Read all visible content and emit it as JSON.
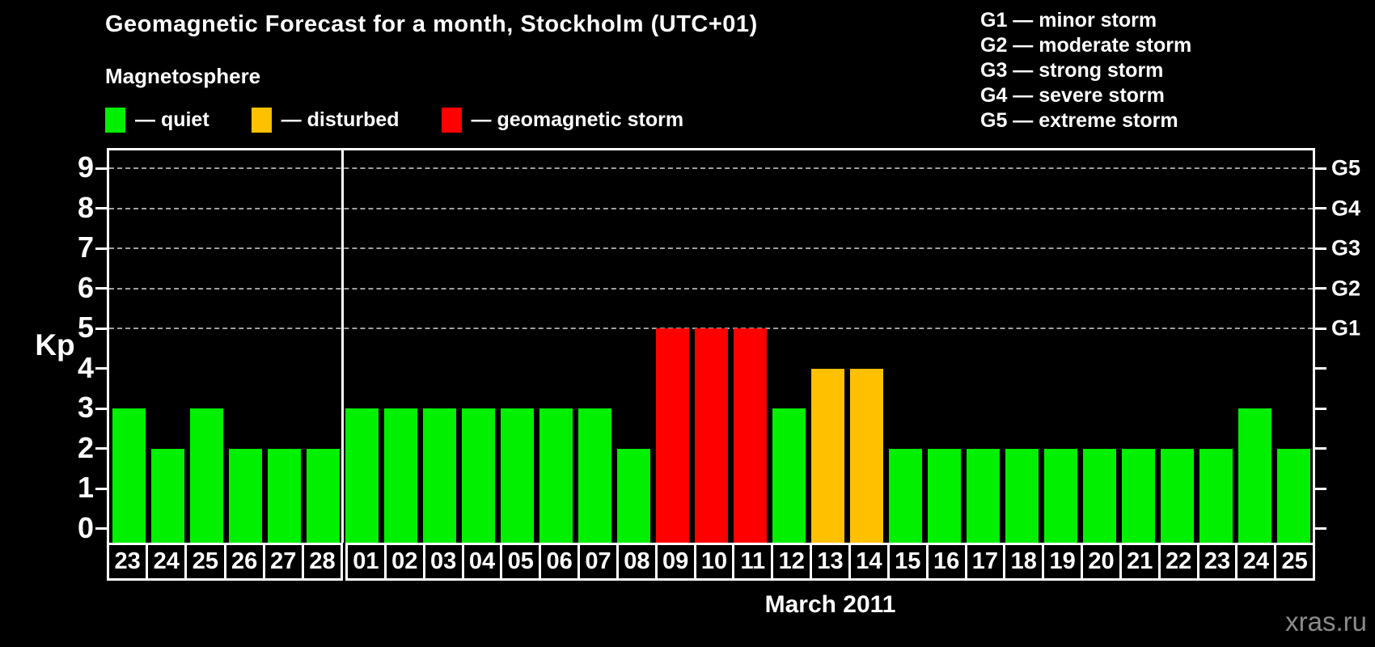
{
  "title": "Geomagnetic Forecast for a month, Stockholm (UTC+01)",
  "watermark": "xras.ru",
  "status_colors": {
    "quiet": "#00f000",
    "disturbed": "#ffc000",
    "storm": "#ff0000"
  },
  "legend": {
    "heading": "Magnetosphere",
    "items": [
      {
        "label": "— quiet",
        "status": "quiet"
      },
      {
        "label": "— disturbed",
        "status": "disturbed"
      },
      {
        "label": "— geomagnetic storm",
        "status": "storm"
      }
    ]
  },
  "storm_scale": [
    "G1 — minor storm",
    "G2 — moderate storm",
    "G3 — strong storm",
    "G4 — severe storm",
    "G5 — extreme storm"
  ],
  "chart_data": {
    "type": "bar",
    "title": "Geomagnetic Forecast for a month, Stockholm (UTC+01)",
    "ylabel": "Kp",
    "xlabel": "March 2011",
    "ylim": [
      0,
      9
    ],
    "yticks": [
      0,
      1,
      2,
      3,
      4,
      5,
      6,
      7,
      8,
      9
    ],
    "gridlines_at": [
      5,
      6,
      7,
      8,
      9
    ],
    "grid": "dashed",
    "legend_position": "top",
    "right_axis": [
      {
        "value": 5,
        "label": "G1"
      },
      {
        "value": 6,
        "label": "G2"
      },
      {
        "value": 7,
        "label": "G3"
      },
      {
        "value": 8,
        "label": "G4"
      },
      {
        "value": 9,
        "label": "G5"
      }
    ],
    "month_separator_after_index": 5,
    "categories": [
      "23",
      "24",
      "25",
      "26",
      "27",
      "28",
      "01",
      "02",
      "03",
      "04",
      "05",
      "06",
      "07",
      "08",
      "09",
      "10",
      "11",
      "12",
      "13",
      "14",
      "15",
      "16",
      "17",
      "18",
      "19",
      "20",
      "21",
      "22",
      "23",
      "24",
      "25"
    ],
    "values": [
      3,
      2,
      3,
      2,
      2,
      2,
      3,
      3,
      3,
      3,
      3,
      3,
      3,
      2,
      5,
      5,
      5,
      3,
      4,
      4,
      2,
      2,
      2,
      2,
      2,
      2,
      2,
      2,
      2,
      3,
      2
    ],
    "statuses": [
      "quiet",
      "quiet",
      "quiet",
      "quiet",
      "quiet",
      "quiet",
      "quiet",
      "quiet",
      "quiet",
      "quiet",
      "quiet",
      "quiet",
      "quiet",
      "quiet",
      "storm",
      "storm",
      "storm",
      "quiet",
      "disturbed",
      "disturbed",
      "quiet",
      "quiet",
      "quiet",
      "quiet",
      "quiet",
      "quiet",
      "quiet",
      "quiet",
      "quiet",
      "quiet",
      "quiet"
    ]
  }
}
